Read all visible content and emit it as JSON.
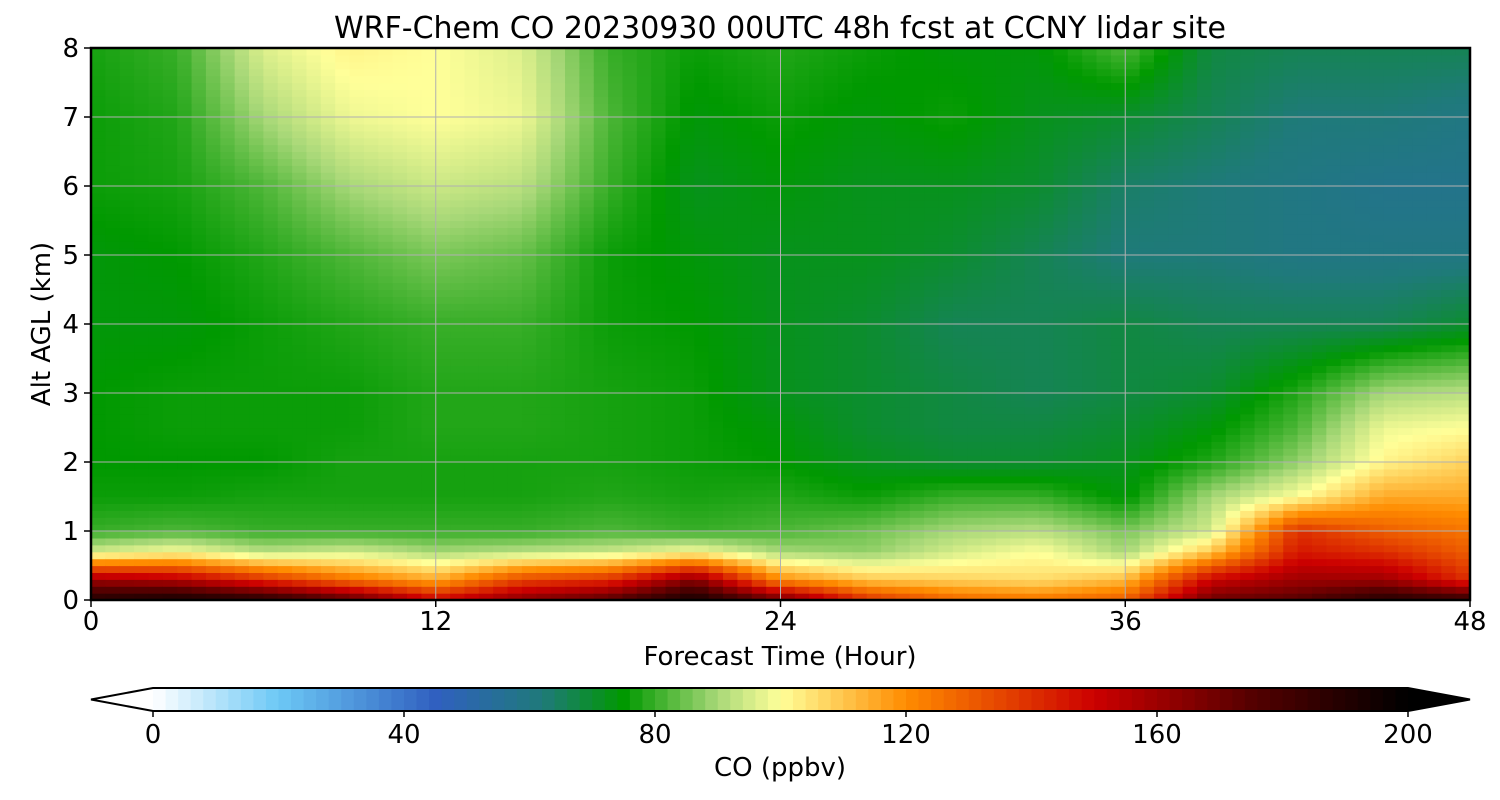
{
  "chart_data": {
    "type": "heatmap",
    "title": "WRF-Chem CO  20230930 00UTC 48h fcst at CCNY lidar site",
    "xlabel": "Forecast Time (Hour)",
    "ylabel": "Alt AGL (km)",
    "xlim": [
      0,
      48
    ],
    "ylim": [
      0,
      8
    ],
    "xticks": [
      0,
      12,
      24,
      36,
      48
    ],
    "yticks": [
      0,
      1,
      2,
      3,
      4,
      5,
      6,
      7,
      8
    ],
    "grid": true,
    "x": [
      0,
      3,
      6,
      9,
      12,
      15,
      18,
      21,
      24,
      27,
      30,
      33,
      36,
      39,
      42,
      45,
      48
    ],
    "y": [
      0,
      0.3,
      0.7,
      1.0,
      1.5,
      2.0,
      2.5,
      3.0,
      4.0,
      5.0,
      6.0,
      7.0,
      8.0
    ],
    "z": [
      [
        190,
        195,
        190,
        175,
        150,
        165,
        175,
        195,
        170,
        140,
        128,
        125,
        130,
        170,
        175,
        190,
        185
      ],
      [
        160,
        155,
        140,
        125,
        115,
        135,
        140,
        165,
        120,
        110,
        108,
        106,
        112,
        150,
        160,
        160,
        140
      ],
      [
        95,
        100,
        92,
        95,
        90,
        92,
        94,
        100,
        90,
        88,
        95,
        100,
        90,
        110,
        145,
        140,
        130
      ],
      [
        80,
        82,
        80,
        80,
        80,
        80,
        82,
        80,
        82,
        85,
        90,
        92,
        86,
        95,
        140,
        130,
        125
      ],
      [
        76,
        76,
        77,
        77,
        77,
        77,
        78,
        77,
        78,
        76,
        80,
        80,
        74,
        90,
        100,
        115,
        115
      ],
      [
        75,
        75,
        75,
        77,
        77,
        77,
        77,
        76,
        75,
        72,
        70,
        70,
        72,
        78,
        88,
        102,
        108
      ],
      [
        75,
        76,
        76,
        76,
        78,
        78,
        77,
        76,
        74,
        70,
        68,
        68,
        70,
        74,
        82,
        98,
        100
      ],
      [
        75,
        76,
        76,
        76,
        78,
        78,
        77,
        76,
        72,
        70,
        68,
        66,
        68,
        70,
        78,
        90,
        92
      ],
      [
        74,
        74,
        76,
        78,
        80,
        80,
        76,
        75,
        72,
        70,
        66,
        66,
        68,
        66,
        66,
        66,
        70
      ],
      [
        74,
        75,
        78,
        82,
        86,
        84,
        76,
        74,
        72,
        72,
        70,
        66,
        62,
        62,
        60,
        60,
        60
      ],
      [
        76,
        77,
        82,
        90,
        94,
        92,
        80,
        72,
        74,
        72,
        72,
        70,
        64,
        62,
        60,
        58,
        58
      ],
      [
        76,
        78,
        90,
        98,
        100,
        98,
        82,
        74,
        76,
        74,
        76,
        72,
        70,
        66,
        62,
        62,
        60
      ],
      [
        77,
        80,
        96,
        102,
        100,
        96,
        80,
        76,
        78,
        76,
        74,
        74,
        82,
        68,
        66,
        66,
        66
      ]
    ],
    "colorbar": {
      "label": "CO  (ppbv)",
      "min": 0,
      "max": 200,
      "ticks": [
        "0",
        "40",
        "80",
        "120",
        "160",
        "200"
      ],
      "extend": "both",
      "colormap": [
        {
          "v": 0,
          "c": "#ffffff"
        },
        {
          "v": 20,
          "c": "#6cc8f5"
        },
        {
          "v": 45,
          "c": "#3060c0"
        },
        {
          "v": 62,
          "c": "#1f7a7a"
        },
        {
          "v": 75,
          "c": "#009900"
        },
        {
          "v": 90,
          "c": "#a8d878"
        },
        {
          "v": 100,
          "c": "#ffff99"
        },
        {
          "v": 120,
          "c": "#ff8c00"
        },
        {
          "v": 150,
          "c": "#cc0000"
        },
        {
          "v": 175,
          "c": "#550000"
        },
        {
          "v": 200,
          "c": "#000000"
        }
      ]
    }
  }
}
